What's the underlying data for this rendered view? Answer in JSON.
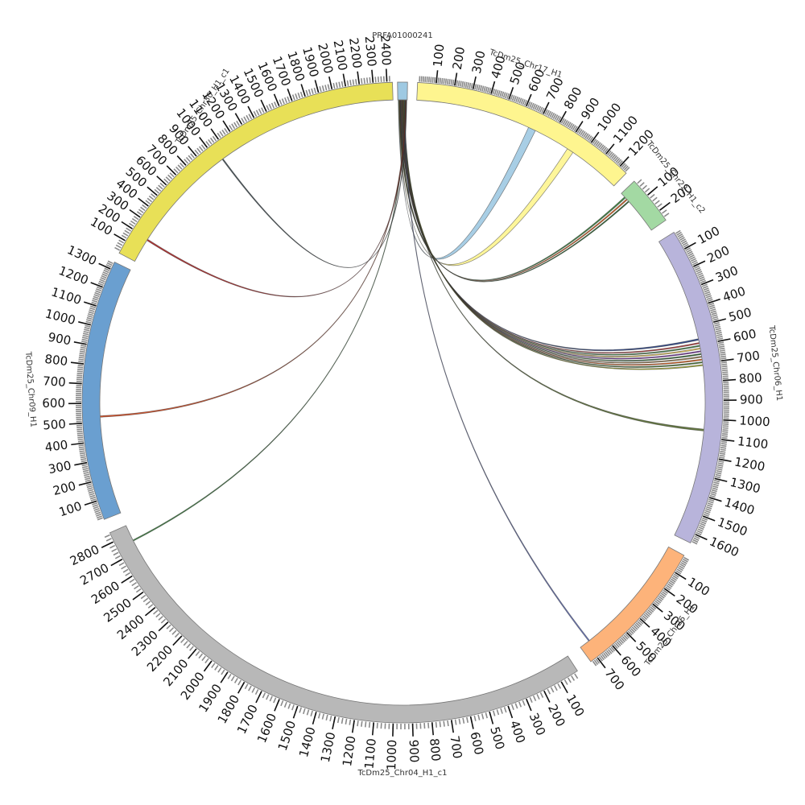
{
  "chart_data": {
    "type": "chord",
    "segments": [
      {
        "id": "prfa",
        "name": "PRFA01000241",
        "color": "#9ec9e2",
        "ticks": []
      },
      {
        "id": "chr17",
        "name": "TcDm25_Chr17_H1",
        "color": "#fef58f",
        "ticks": [
          100,
          200,
          300,
          400,
          500,
          600,
          700,
          800,
          900,
          1000,
          1100,
          1200
        ]
      },
      {
        "id": "chr22",
        "name": "TcDm25_Chr22_H1_c2",
        "color": "#a3d9a3",
        "ticks": [
          100,
          200
        ]
      },
      {
        "id": "chr06",
        "name": "TcDm25_Chr06_H1",
        "color": "#b8b4db",
        "ticks": [
          100,
          200,
          300,
          400,
          500,
          600,
          700,
          800,
          900,
          1000,
          1100,
          1200,
          1300,
          1400,
          1500,
          1600
        ]
      },
      {
        "id": "chr26",
        "name": "TcDm25_Chr26_H1",
        "color": "#fdb37a",
        "ticks": [
          100,
          200,
          300,
          400,
          500,
          600,
          700
        ]
      },
      {
        "id": "chr04",
        "name": "TcDm25_Chr04_H1_c1",
        "color": "#b8b8b8",
        "ticks": [
          100,
          200,
          300,
          400,
          500,
          600,
          700,
          800,
          900,
          1000,
          1100,
          1200,
          1300,
          1400,
          1500,
          1600,
          1700,
          1800,
          1900,
          2000,
          2100,
          2200,
          2300,
          2400,
          2500,
          2600,
          2700,
          2800
        ]
      },
      {
        "id": "chr09",
        "name": "TcDm25_Chr09_H1",
        "color": "#6a9fd0",
        "ticks": [
          100,
          200,
          300,
          400,
          500,
          600,
          700,
          800,
          900,
          1000,
          1100,
          1200,
          1300
        ]
      },
      {
        "id": "chr30",
        "name": "TcDm25_Chr30_H1_c1",
        "color": "#e8e057",
        "ticks": [
          100,
          200,
          300,
          400,
          500,
          600,
          700,
          800,
          900,
          1000,
          1100,
          1200,
          1300,
          1400,
          1500,
          1600,
          1700,
          1800,
          1900,
          2000,
          2100,
          2200,
          2300,
          2400
        ]
      }
    ],
    "links": [
      {
        "target": "chr17",
        "pos": 680,
        "color": "#9ec9e2",
        "width": 8
      },
      {
        "target": "chr17",
        "pos": 930,
        "color": "#fef58f",
        "width": 7
      },
      {
        "target": "chr22",
        "pos": 30,
        "color": "#2e7d32",
        "width": 1.5
      },
      {
        "target": "chr22",
        "pos": 45,
        "color": "#e65100",
        "width": 1.2
      },
      {
        "target": "chr22",
        "pos": 60,
        "color": "#1b5e20",
        "width": 1.2
      },
      {
        "target": "chr06",
        "pos": 570,
        "color": "#1f3b8a",
        "width": 1.5
      },
      {
        "target": "chr06",
        "pos": 590,
        "color": "#c62828",
        "width": 1.2
      },
      {
        "target": "chr06",
        "pos": 605,
        "color": "#2e7d32",
        "width": 1.2
      },
      {
        "target": "chr06",
        "pos": 620,
        "color": "#f2c744",
        "width": 1.2
      },
      {
        "target": "chr06",
        "pos": 635,
        "color": "#6a1b9a",
        "width": 1.2
      },
      {
        "target": "chr06",
        "pos": 650,
        "color": "#1b5e20",
        "width": 1.2
      },
      {
        "target": "chr06",
        "pos": 665,
        "color": "#8d6e3c",
        "width": 1.2
      },
      {
        "target": "chr06",
        "pos": 680,
        "color": "#e65100",
        "width": 1.2
      },
      {
        "target": "chr06",
        "pos": 695,
        "color": "#33691e",
        "width": 1.2
      },
      {
        "target": "chr06",
        "pos": 710,
        "color": "#aab020",
        "width": 1.2
      },
      {
        "target": "chr06",
        "pos": 1060,
        "color": "#556b2f",
        "width": 2
      },
      {
        "target": "chr26",
        "pos": 680,
        "color": "#5c6bc0",
        "width": 1.2
      },
      {
        "target": "chr04",
        "pos": 2760,
        "color": "#2e7d32",
        "width": 1.2
      },
      {
        "target": "chr09",
        "pos": 530,
        "color": "#d84315",
        "width": 1.5
      },
      {
        "target": "chr30",
        "pos": 190,
        "color": "#b71c1c",
        "width": 1.5
      },
      {
        "target": "chr30",
        "pos": 1040,
        "color": "#37474f",
        "width": 1.2
      }
    ]
  }
}
